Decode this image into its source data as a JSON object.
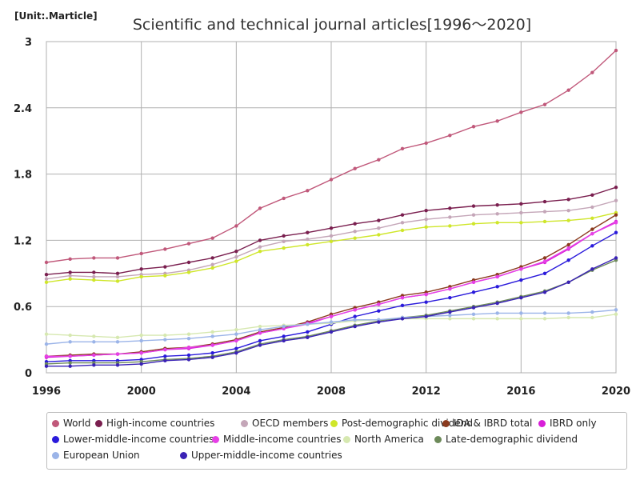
{
  "chart_data": {
    "type": "line",
    "title": "Scientific and technical journal articles[1996～2020]",
    "unit_label": "[Unit:.Marticle]",
    "xlabel": "",
    "ylabel": "",
    "x": [
      1996,
      1997,
      1998,
      1999,
      2000,
      2001,
      2002,
      2003,
      2004,
      2005,
      2006,
      2007,
      2008,
      2009,
      2010,
      2011,
      2012,
      2013,
      2014,
      2015,
      2016,
      2017,
      2018,
      2019,
      2020
    ],
    "xlim": [
      1996,
      2020
    ],
    "ylim": [
      0,
      3
    ],
    "x_ticks": [
      "1996",
      "2000",
      "2004",
      "2008",
      "2012",
      "2016",
      "2020"
    ],
    "y_ticks": [
      "0",
      "0.6",
      "1.2",
      "1.8",
      "2.4",
      "3"
    ],
    "grid": true,
    "legend_position": "bottom",
    "series": [
      {
        "name": "World",
        "color": "#c0587a",
        "values": [
          1.0,
          1.03,
          1.04,
          1.04,
          1.08,
          1.12,
          1.17,
          1.22,
          1.33,
          1.49,
          1.58,
          1.65,
          1.75,
          1.85,
          1.93,
          2.03,
          2.08,
          2.15,
          2.23,
          2.28,
          2.36,
          2.43,
          2.56,
          2.72,
          2.92
        ]
      },
      {
        "name": "High-income countries",
        "color": "#7a1f4f",
        "values": [
          0.89,
          0.91,
          0.91,
          0.9,
          0.94,
          0.96,
          1.0,
          1.04,
          1.1,
          1.2,
          1.24,
          1.27,
          1.31,
          1.35,
          1.38,
          1.43,
          1.47,
          1.49,
          1.51,
          1.52,
          1.53,
          1.55,
          1.57,
          1.61,
          1.68
        ]
      },
      {
        "name": "OECD members",
        "color": "#c4a6b8",
        "values": [
          0.85,
          0.88,
          0.87,
          0.87,
          0.89,
          0.9,
          0.93,
          0.98,
          1.05,
          1.14,
          1.19,
          1.21,
          1.24,
          1.28,
          1.31,
          1.36,
          1.39,
          1.41,
          1.43,
          1.44,
          1.45,
          1.46,
          1.47,
          1.5,
          1.56
        ]
      },
      {
        "name": "Post-demographic dividend",
        "color": "#cfe62a",
        "values": [
          0.82,
          0.85,
          0.84,
          0.83,
          0.87,
          0.88,
          0.91,
          0.95,
          1.01,
          1.1,
          1.13,
          1.16,
          1.19,
          1.22,
          1.25,
          1.29,
          1.32,
          1.33,
          1.35,
          1.36,
          1.36,
          1.37,
          1.38,
          1.4,
          1.45
        ]
      },
      {
        "name": "IDA & IBRD total",
        "color": "#8b3a1e",
        "values": [
          0.15,
          0.16,
          0.17,
          0.17,
          0.19,
          0.22,
          0.23,
          0.26,
          0.3,
          0.37,
          0.41,
          0.46,
          0.53,
          0.59,
          0.64,
          0.7,
          0.73,
          0.78,
          0.84,
          0.89,
          0.96,
          1.04,
          1.16,
          1.3,
          1.43
        ]
      },
      {
        "name": "IBRD only",
        "color": "#d81fd8",
        "values": [
          0.14,
          0.15,
          0.16,
          0.17,
          0.18,
          0.21,
          0.22,
          0.25,
          0.29,
          0.36,
          0.4,
          0.45,
          0.51,
          0.57,
          0.62,
          0.68,
          0.71,
          0.76,
          0.82,
          0.87,
          0.94,
          1.0,
          1.12,
          1.26,
          1.37
        ]
      },
      {
        "name": "Lower-middle-income countries",
        "color": "#2a1adb",
        "values": [
          0.1,
          0.11,
          0.11,
          0.11,
          0.12,
          0.15,
          0.16,
          0.18,
          0.22,
          0.29,
          0.33,
          0.37,
          0.44,
          0.51,
          0.56,
          0.61,
          0.64,
          0.68,
          0.73,
          0.78,
          0.84,
          0.9,
          1.02,
          1.15,
          1.27
        ]
      },
      {
        "name": "Middle-income countries",
        "color": "#e640e6",
        "values": [
          0.15,
          0.15,
          0.16,
          0.17,
          0.18,
          0.21,
          0.23,
          0.25,
          0.29,
          0.36,
          0.4,
          0.44,
          0.51,
          0.57,
          0.62,
          0.68,
          0.71,
          0.76,
          0.82,
          0.87,
          0.94,
          1.01,
          1.13,
          1.26,
          1.36
        ]
      },
      {
        "name": "North America",
        "color": "#d6e8b0",
        "values": [
          0.35,
          0.34,
          0.33,
          0.32,
          0.34,
          0.34,
          0.35,
          0.37,
          0.39,
          0.42,
          0.43,
          0.44,
          0.45,
          0.47,
          0.48,
          0.49,
          0.49,
          0.49,
          0.49,
          0.49,
          0.49,
          0.49,
          0.5,
          0.5,
          0.53
        ]
      },
      {
        "name": "Late-demographic dividend",
        "color": "#6d8a5a",
        "values": [
          0.08,
          0.09,
          0.09,
          0.09,
          0.1,
          0.12,
          0.13,
          0.15,
          0.19,
          0.26,
          0.3,
          0.33,
          0.38,
          0.43,
          0.47,
          0.5,
          0.52,
          0.56,
          0.6,
          0.64,
          0.69,
          0.74,
          0.82,
          0.93,
          1.02
        ]
      },
      {
        "name": "European Union",
        "color": "#9bb4e8",
        "values": [
          0.26,
          0.28,
          0.28,
          0.28,
          0.29,
          0.3,
          0.31,
          0.33,
          0.35,
          0.39,
          0.42,
          0.44,
          0.46,
          0.48,
          0.48,
          0.5,
          0.51,
          0.52,
          0.53,
          0.54,
          0.54,
          0.54,
          0.54,
          0.55,
          0.57
        ]
      },
      {
        "name": "Upper-middle-income countries",
        "color": "#3a22b5",
        "values": [
          0.06,
          0.06,
          0.07,
          0.07,
          0.08,
          0.11,
          0.12,
          0.14,
          0.18,
          0.25,
          0.29,
          0.32,
          0.37,
          0.42,
          0.46,
          0.49,
          0.51,
          0.55,
          0.59,
          0.63,
          0.68,
          0.73,
          0.82,
          0.94,
          1.04
        ]
      }
    ]
  }
}
